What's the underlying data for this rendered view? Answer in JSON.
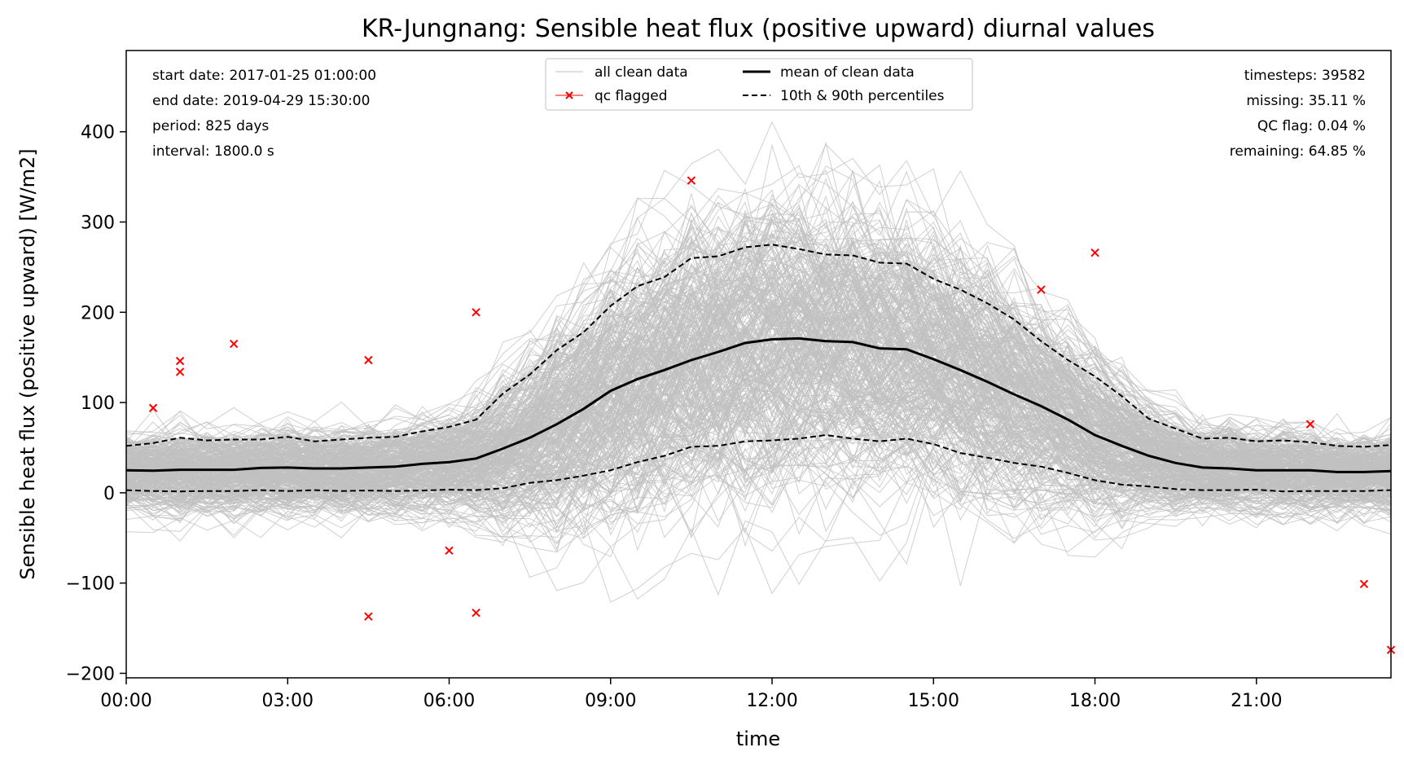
{
  "chart_data": {
    "type": "line",
    "title": "KR-Jungnang: Sensible heat flux (positive upward) diurnal values",
    "xlabel": "time",
    "ylabel": "Sensible heat flux (positive upward) [W/m2]",
    "xlim": [
      0,
      23.5
    ],
    "ylim": [
      -205,
      490
    ],
    "x_ticks": [
      0,
      3,
      6,
      9,
      12,
      15,
      18,
      21
    ],
    "x_tick_labels": [
      "00:00",
      "03:00",
      "06:00",
      "09:00",
      "12:00",
      "15:00",
      "18:00",
      "21:00"
    ],
    "y_ticks": [
      -200,
      -100,
      0,
      100,
      200,
      300,
      400
    ],
    "y_tick_labels": [
      "−200",
      "−100",
      "0",
      "100",
      "200",
      "300",
      "400"
    ],
    "x": [
      0,
      0.5,
      1,
      1.5,
      2,
      2.5,
      3,
      3.5,
      4,
      4.5,
      5,
      5.5,
      6,
      6.5,
      7,
      7.5,
      8,
      8.5,
      9,
      9.5,
      10,
      10.5,
      11,
      11.5,
      12,
      12.5,
      13,
      13.5,
      14,
      14.5,
      15,
      15.5,
      16,
      16.5,
      17,
      17.5,
      18,
      18.5,
      19,
      19.5,
      20,
      20.5,
      21,
      21.5,
      22,
      22.5,
      23,
      23.5
    ],
    "series": [
      {
        "name": "mean of clean data",
        "style": "solid",
        "color": "#000000",
        "values": [
          25,
          24.5,
          25.5,
          25.5,
          25.5,
          27.5,
          28,
          27,
          27,
          28,
          29,
          32,
          34,
          38,
          49,
          61,
          76,
          93,
          113,
          126,
          136,
          147,
          156,
          166,
          170,
          171,
          168,
          167,
          160,
          159,
          148,
          136,
          123,
          109,
          96,
          81,
          64,
          52,
          41,
          33,
          28,
          27,
          25,
          25,
          25,
          23,
          23,
          24
        ]
      },
      {
        "name": "10th & 90th percentiles",
        "style": "dashed",
        "color": "#000000",
        "values": [
          52,
          55,
          61,
          58,
          59,
          59,
          62,
          57,
          59,
          61,
          62,
          68,
          73,
          81,
          110,
          131,
          158,
          178,
          207,
          229,
          239,
          260,
          262,
          272,
          275,
          270,
          264,
          263,
          255,
          254,
          237,
          225,
          210,
          192,
          168,
          147,
          129,
          107,
          82,
          71,
          60,
          61,
          57,
          58,
          56,
          52,
          51,
          53
        ]
      },
      {
        "name": "10th percentile",
        "style": "dashed",
        "color": "#000000",
        "values": [
          3,
          2,
          1.5,
          2,
          2,
          3,
          2,
          3,
          2,
          2.5,
          2,
          2.5,
          3.5,
          3,
          5,
          11,
          14,
          19,
          25,
          34,
          41,
          51,
          52,
          57,
          58,
          60,
          64,
          60,
          57,
          60,
          54,
          44,
          39,
          33,
          29,
          22,
          14,
          9,
          7,
          4,
          3,
          3,
          3.5,
          1.5,
          2,
          2,
          2,
          3
        ]
      }
    ],
    "clean_data_band": {
      "name": "all clean data",
      "color": "#c0c0c0"
    },
    "qc_flagged": {
      "name": "qc flagged",
      "color": "#ff0000",
      "points": [
        [
          0.5,
          94
        ],
        [
          1,
          146
        ],
        [
          1,
          134
        ],
        [
          2,
          165
        ],
        [
          4.5,
          147
        ],
        [
          4.5,
          -137
        ],
        [
          6,
          -64
        ],
        [
          6.5,
          200
        ],
        [
          6.5,
          -133
        ],
        [
          10.5,
          346
        ],
        [
          17,
          225
        ],
        [
          18,
          266
        ],
        [
          22,
          76
        ],
        [
          23,
          -101
        ],
        [
          23.5,
          -174
        ]
      ]
    },
    "info_left": [
      "start date: 2017-01-25 01:00:00",
      "end date: 2019-04-29 15:30:00",
      "period: 825 days",
      "interval: 1800.0 s"
    ],
    "info_right": [
      "timesteps: 39582",
      "missing: 35.11 %",
      "QC flag: 0.04 %",
      "remaining: 64.85 %"
    ],
    "legend": {
      "position": "top-center",
      "entries": [
        "all clean data",
        "qc flagged",
        "mean of clean data",
        "10th & 90th percentiles"
      ]
    },
    "grid": false
  }
}
